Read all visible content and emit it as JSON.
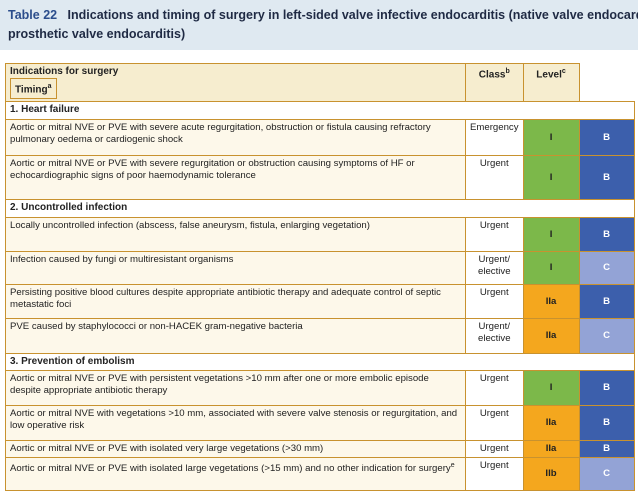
{
  "header": {
    "label": "Table 22",
    "title_line1": "Indications and timing of surgery in left-sided valve infective endocarditis (native valve endocard",
    "title_line2": "prosthetic valve endocarditis)"
  },
  "table": {
    "columns": {
      "indication": "Indications for surgery",
      "timing": "Timing",
      "timing_note": "a",
      "class": "Class",
      "class_note": "b",
      "level": "Level",
      "level_note": "c"
    },
    "class_colors": {
      "I": "#7cb84a",
      "IIa": "#f4a71e",
      "IIb": "#f4a71e"
    },
    "level_colors": {
      "B": "#3c5fac",
      "C": "#93a3d6"
    },
    "sections": [
      {
        "title": "1. Heart failure",
        "rows": [
          {
            "indication": "Aortic or mitral NVE or PVE with severe acute regurgitation, obstruction or fistula causing refractory pulmonary oedema or cardiogenic shock",
            "timing": "Emergency",
            "class": "I",
            "level": "B"
          },
          {
            "indication": "Aortic or mitral NVE or PVE with severe regurgitation or obstruction causing symptoms of HF or echocardiographic signs of poor haemodynamic tolerance",
            "timing": "Urgent",
            "class": "I",
            "level": "B"
          }
        ]
      },
      {
        "title": "2. Uncontrolled infection",
        "rows": [
          {
            "indication": "Locally uncontrolled infection (abscess, false aneurysm, fistula, enlarging vegetation)",
            "timing": "Urgent",
            "class": "I",
            "level": "B"
          },
          {
            "indication": "Infection caused by fungi or multiresistant organisms",
            "timing": "Urgent/ elective",
            "class": "I",
            "level": "C"
          },
          {
            "indication": "Persisting positive blood cultures despite appropriate antibiotic therapy and adequate control of septic metastatic foci",
            "timing": "Urgent",
            "class": "IIa",
            "level": "B"
          },
          {
            "indication": "PVE caused by staphylococci or non-HACEK gram-negative bacteria",
            "timing": "Urgent/ elective",
            "class": "IIa",
            "level": "C"
          }
        ]
      },
      {
        "title": "3. Prevention of embolism",
        "rows": [
          {
            "indication": "Aortic or mitral NVE or PVE with persistent vegetations >10 mm after one or more embolic episode despite appropriate antibiotic therapy",
            "timing": "Urgent",
            "class": "I",
            "level": "B"
          },
          {
            "indication": "Aortic or mitral NVE with vegetations >10 mm, associated with severe valve stenosis or regurgitation, and low operative risk",
            "timing": "Urgent",
            "class": "IIa",
            "level": "B"
          },
          {
            "indication": "Aortic or mitral NVE or PVE with isolated very large vegetations (>30 mm)",
            "timing": "Urgent",
            "class": "IIa",
            "level": "B"
          },
          {
            "indication": "Aortic or mitral NVE or PVE with isolated large vegetations (>15 mm) and no other indication for surgery",
            "note": "e",
            "timing": "Urgent",
            "class": "IIb",
            "level": "C"
          }
        ]
      }
    ]
  }
}
